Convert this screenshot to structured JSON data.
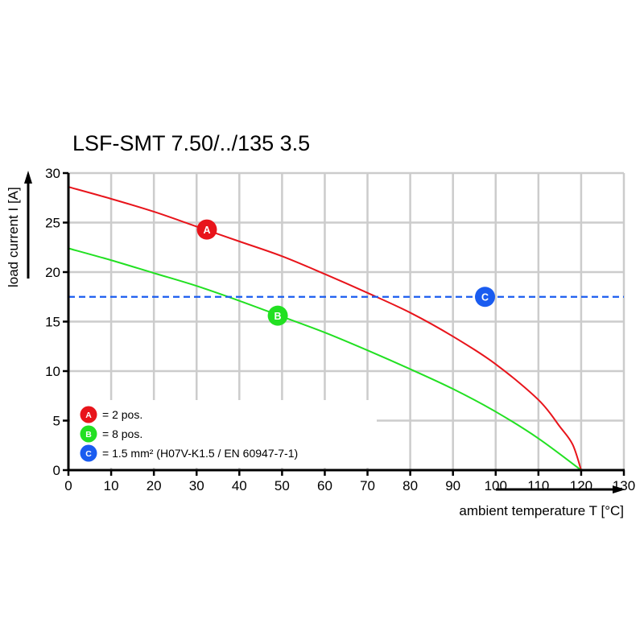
{
  "chart_data": {
    "type": "line",
    "title": "LSF-SMT 7.50/../135 3.5",
    "xlabel": "ambient temperature T [°C]",
    "ylabel": "load current I [A]",
    "xlim": [
      0,
      130
    ],
    "ylim": [
      0,
      30
    ],
    "x_ticks": [
      0,
      10,
      20,
      30,
      40,
      50,
      60,
      70,
      80,
      90,
      100,
      110,
      120,
      130
    ],
    "y_ticks": [
      0,
      5,
      10,
      15,
      20,
      25,
      30
    ],
    "grid": true,
    "series": [
      {
        "marker_label": "A",
        "color": "#e8141b",
        "style": "solid",
        "x": [
          0,
          10,
          20,
          30,
          40,
          50,
          60,
          70,
          80,
          90,
          100,
          110,
          115,
          118,
          120
        ],
        "y": [
          28.6,
          27.4,
          26.1,
          24.6,
          23.1,
          21.6,
          19.8,
          17.9,
          15.9,
          13.5,
          10.7,
          7.1,
          4.4,
          2.6,
          0
        ],
        "marker_at": [
          32.4,
          24.3
        ]
      },
      {
        "marker_label": "B",
        "color": "#22e022",
        "style": "solid",
        "x": [
          0,
          10,
          20,
          30,
          40,
          50,
          60,
          70,
          80,
          90,
          100,
          110,
          120
        ],
        "y": [
          22.4,
          21.2,
          19.9,
          18.6,
          17.1,
          15.5,
          13.9,
          12.1,
          10.2,
          8.2,
          5.9,
          3.2,
          0
        ],
        "marker_at": [
          49,
          15.6
        ]
      },
      {
        "marker_label": "C",
        "color": "#1a5cf0",
        "style": "dashed",
        "x": [
          0,
          130
        ],
        "y": [
          17.5,
          17.5
        ],
        "marker_at": [
          97.5,
          17.5
        ]
      }
    ],
    "legend": {
      "placement": "bottom-left",
      "entries": [
        {
          "marker": "A",
          "text": "= 2 pos.",
          "color": "#e8141b"
        },
        {
          "marker": "B",
          "text": "= 8 pos.",
          "color": "#22e022"
        },
        {
          "marker": "C",
          "text": "= 1.5 mm² (H07V-K1.5 / EN 60947-7-1)",
          "color": "#1a5cf0"
        }
      ]
    }
  }
}
